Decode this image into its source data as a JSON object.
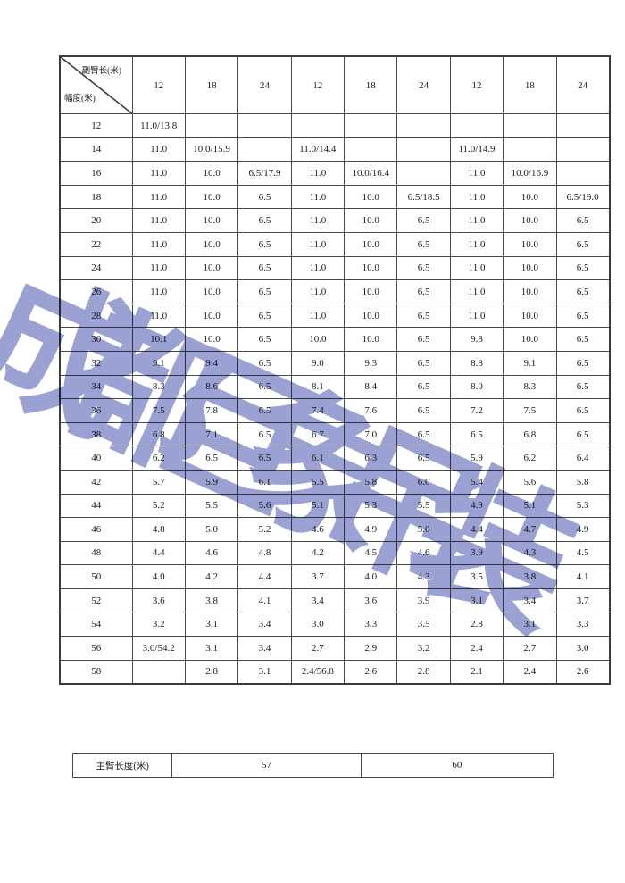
{
  "watermark": {
    "text": "成都巨象吊装",
    "color": "#7b82c6"
  },
  "jib_table": {
    "corner": {
      "top_label": "副臂长(米)",
      "bottom_label": "幅度(米)"
    },
    "columns": [
      "12",
      "18",
      "24",
      "12",
      "18",
      "24",
      "12",
      "18",
      "24"
    ],
    "rows": [
      {
        "radius": "12",
        "values": [
          "11.0/13.8",
          "",
          "",
          "",
          "",
          "",
          "",
          "",
          ""
        ]
      },
      {
        "radius": "14",
        "values": [
          "11.0",
          "10.0/15.9",
          "",
          "11.0/14.4",
          "",
          "",
          "11.0/14.9",
          "",
          ""
        ]
      },
      {
        "radius": "16",
        "values": [
          "11.0",
          "10.0",
          "6.5/17.9",
          "11.0",
          "10.0/16.4",
          "",
          "11.0",
          "10.0/16.9",
          ""
        ]
      },
      {
        "radius": "18",
        "values": [
          "11.0",
          "10.0",
          "6.5",
          "11.0",
          "10.0",
          "6.5/18.5",
          "11.0",
          "10.0",
          "6.5/19.0"
        ]
      },
      {
        "radius": "20",
        "values": [
          "11.0",
          "10.0",
          "6.5",
          "11.0",
          "10.0",
          "6.5",
          "11.0",
          "10.0",
          "6.5"
        ]
      },
      {
        "radius": "22",
        "values": [
          "11.0",
          "10.0",
          "6.5",
          "11.0",
          "10.0",
          "6.5",
          "11.0",
          "10.0",
          "6.5"
        ]
      },
      {
        "radius": "24",
        "values": [
          "11.0",
          "10.0",
          "6.5",
          "11.0",
          "10.0",
          "6.5",
          "11.0",
          "10.0",
          "6.5"
        ]
      },
      {
        "radius": "26",
        "values": [
          "11.0",
          "10.0",
          "6.5",
          "11.0",
          "10.0",
          "6.5",
          "11.0",
          "10.0",
          "6.5"
        ]
      },
      {
        "radius": "28",
        "values": [
          "11.0",
          "10.0",
          "6.5",
          "11.0",
          "10.0",
          "6.5",
          "11.0",
          "10.0",
          "6.5"
        ]
      },
      {
        "radius": "30",
        "values": [
          "10.1",
          "10.0",
          "6.5",
          "10.0",
          "10.0",
          "6.5",
          "9.8",
          "10.0",
          "6.5"
        ]
      },
      {
        "radius": "32",
        "values": [
          "9.1",
          "9.4",
          "6.5",
          "9.0",
          "9.3",
          "6.5",
          "8.8",
          "9.1",
          "6.5"
        ]
      },
      {
        "radius": "34",
        "values": [
          "8.3",
          "8.6",
          "6.5",
          "8.1",
          "8.4",
          "6.5",
          "8.0",
          "8.3",
          "6.5"
        ]
      },
      {
        "radius": "36",
        "values": [
          "7.5",
          "7.8",
          "6.5",
          "7.4",
          "7.6",
          "6.5",
          "7.2",
          "7.5",
          "6.5"
        ]
      },
      {
        "radius": "38",
        "values": [
          "6.8",
          "7.1",
          "6.5",
          "6.7",
          "7.0",
          "6.5",
          "6.5",
          "6.8",
          "6.5"
        ]
      },
      {
        "radius": "40",
        "values": [
          "6.2",
          "6.5",
          "6.5",
          "6.1",
          "6.3",
          "6.5",
          "5.9",
          "6.2",
          "6.4"
        ]
      },
      {
        "radius": "42",
        "values": [
          "5.7",
          "5.9",
          "6.1",
          "5.5",
          "5.8",
          "6.0",
          "5.4",
          "5.6",
          "5.8"
        ]
      },
      {
        "radius": "44",
        "values": [
          "5.2",
          "5.5",
          "5.6",
          "5.1",
          "5.3",
          "5.5",
          "4.9",
          "5.1",
          "5.3"
        ]
      },
      {
        "radius": "46",
        "values": [
          "4.8",
          "5.0",
          "5.2",
          "4.6",
          "4.9",
          "5.0",
          "4.4",
          "4.7",
          "4.9"
        ]
      },
      {
        "radius": "48",
        "values": [
          "4.4",
          "4.6",
          "4.8",
          "4.2",
          "4.5",
          "4.6",
          "3.9",
          "4.3",
          "4.5"
        ]
      },
      {
        "radius": "50",
        "values": [
          "4.0",
          "4.2",
          "4.4",
          "3.7",
          "4.0",
          "4.3",
          "3.5",
          "3.8",
          "4.1"
        ]
      },
      {
        "radius": "52",
        "values": [
          "3.6",
          "3.8",
          "4.1",
          "3.4",
          "3.6",
          "3.9",
          "3.1",
          "3.4",
          "3.7"
        ]
      },
      {
        "radius": "54",
        "values": [
          "3.2",
          "3.1",
          "3.4",
          "3.0",
          "3.3",
          "3.5",
          "2.8",
          "3.1",
          "3.3"
        ]
      },
      {
        "radius": "56",
        "values": [
          "3.0/54.2",
          "3.1",
          "3.4",
          "2.7",
          "2.9",
          "3.2",
          "2.4",
          "2.7",
          "3.0"
        ]
      },
      {
        "radius": "58",
        "values": [
          "",
          "2.8",
          "3.1",
          "2.4/56.8",
          "2.6",
          "2.8",
          "2.1",
          "2.4",
          "2.6"
        ]
      }
    ]
  },
  "boom_table": {
    "label": "主臂长度(米)",
    "values": [
      "57",
      "60"
    ]
  }
}
